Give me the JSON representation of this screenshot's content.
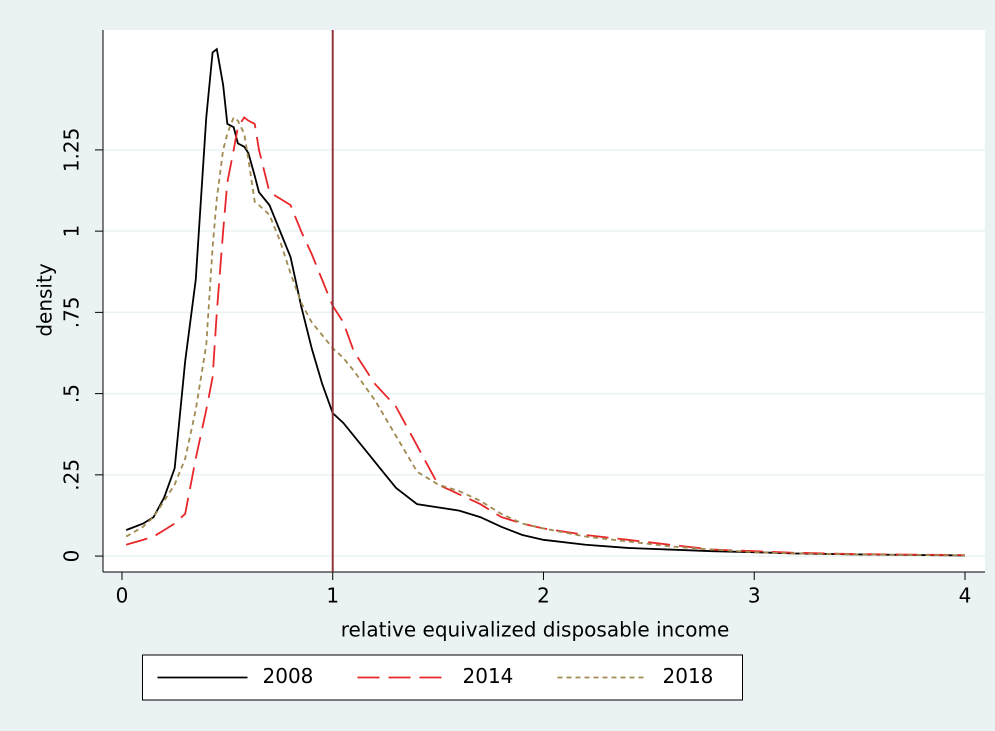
{
  "chart_data": {
    "type": "line",
    "x_label": "relative equivalized disposable income",
    "y_label": "density",
    "x": [
      0.02,
      0.1,
      0.15,
      0.2,
      0.25,
      0.3,
      0.35,
      0.4,
      0.43,
      0.45,
      0.48,
      0.5,
      0.53,
      0.55,
      0.58,
      0.6,
      0.63,
      0.65,
      0.7,
      0.75,
      0.8,
      0.85,
      0.9,
      0.95,
      1,
      1.05,
      1.1,
      1.2,
      1.3,
      1.4,
      1.5,
      1.6,
      1.7,
      1.8,
      1.9,
      2,
      2.2,
      2.4,
      2.6,
      2.8,
      3,
      3.2,
      3.5,
      4
    ],
    "series": [
      {
        "name": "2008",
        "color": "#000000",
        "line_style": "solid",
        "values": [
          0.08,
          0.1,
          0.12,
          0.18,
          0.27,
          0.6,
          0.85,
          1.35,
          1.55,
          1.56,
          1.45,
          1.33,
          1.32,
          1.27,
          1.26,
          1.24,
          1.17,
          1.12,
          1.08,
          1.0,
          0.92,
          0.77,
          0.64,
          0.53,
          0.44,
          0.41,
          0.37,
          0.29,
          0.21,
          0.16,
          0.15,
          0.14,
          0.12,
          0.09,
          0.065,
          0.05,
          0.035,
          0.025,
          0.02,
          0.015,
          0.012,
          0.008,
          0.005,
          0.002
        ]
      },
      {
        "name": "2014",
        "color": "#e8272a",
        "line_style": "longdash",
        "values": [
          0.035,
          0.05,
          0.06,
          0.08,
          0.1,
          0.13,
          0.3,
          0.45,
          0.55,
          0.75,
          1.0,
          1.15,
          1.25,
          1.32,
          1.35,
          1.34,
          1.33,
          1.25,
          1.12,
          1.1,
          1.08,
          1.0,
          0.93,
          0.85,
          0.77,
          0.72,
          0.63,
          0.53,
          0.46,
          0.34,
          0.22,
          0.19,
          0.16,
          0.12,
          0.1,
          0.085,
          0.065,
          0.05,
          0.035,
          0.02,
          0.015,
          0.01,
          0.006,
          0.003
        ]
      },
      {
        "name": "2018",
        "color": "#a08a50",
        "line_style": "shortdash",
        "values": [
          0.06,
          0.09,
          0.12,
          0.17,
          0.22,
          0.3,
          0.45,
          0.65,
          0.95,
          1.1,
          1.25,
          1.3,
          1.35,
          1.34,
          1.3,
          1.22,
          1.09,
          1.08,
          1.05,
          0.97,
          0.87,
          0.78,
          0.72,
          0.68,
          0.64,
          0.61,
          0.57,
          0.48,
          0.37,
          0.26,
          0.22,
          0.2,
          0.17,
          0.13,
          0.1,
          0.085,
          0.06,
          0.045,
          0.03,
          0.02,
          0.012,
          0.008,
          0.005,
          0.002
        ]
      }
    ],
    "xline": 1,
    "xline_color": "#90353b",
    "xlim": [
      -0.09,
      4.095
    ],
    "ylim": [
      -0.049,
      1.619
    ],
    "xticks": [
      0,
      1,
      2,
      3,
      4
    ],
    "yticks": [
      0,
      {
        "value": 0.25,
        "label": ".25"
      },
      {
        "value": 0.5,
        "label": ".5"
      },
      {
        "value": 0.75,
        "label": ".75"
      },
      1,
      {
        "value": 1.25,
        "label": "1.25"
      }
    ],
    "grid": true,
    "legend": "bottom"
  }
}
